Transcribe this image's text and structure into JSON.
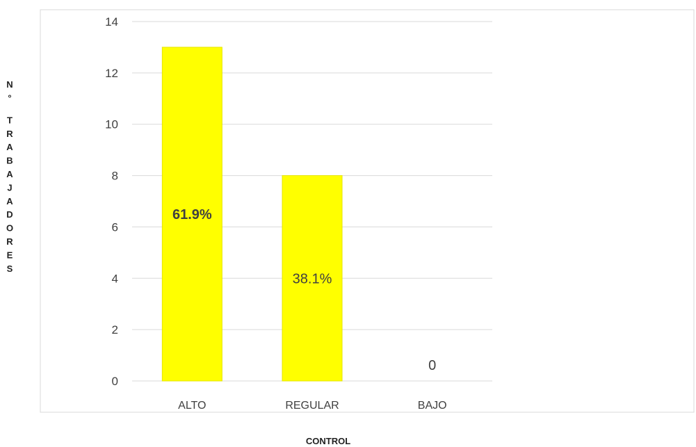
{
  "chart_data": {
    "type": "bar",
    "categories": [
      "ALTO",
      "REGULAR",
      "BAJO"
    ],
    "values": [
      13,
      8,
      0
    ],
    "data_labels": [
      "61.9%",
      "38.1%",
      "0"
    ],
    "data_label_bold": [
      true,
      false,
      false
    ],
    "xlabel": "CONTROL",
    "ylabel": "N° TRABAJADORES",
    "ylabel_letters": [
      "N",
      "°",
      "T",
      "R",
      "A",
      "B",
      "A",
      "J",
      "A",
      "D",
      "O",
      "R",
      "E",
      "S"
    ],
    "ylim": [
      0,
      14
    ],
    "yticks": [
      0,
      2,
      4,
      6,
      8,
      10,
      12,
      14
    ],
    "grid": true,
    "bar_color": "#FFFF00",
    "bar_edge_color": "#E6E600",
    "grid_color": "#D9D9D9"
  }
}
